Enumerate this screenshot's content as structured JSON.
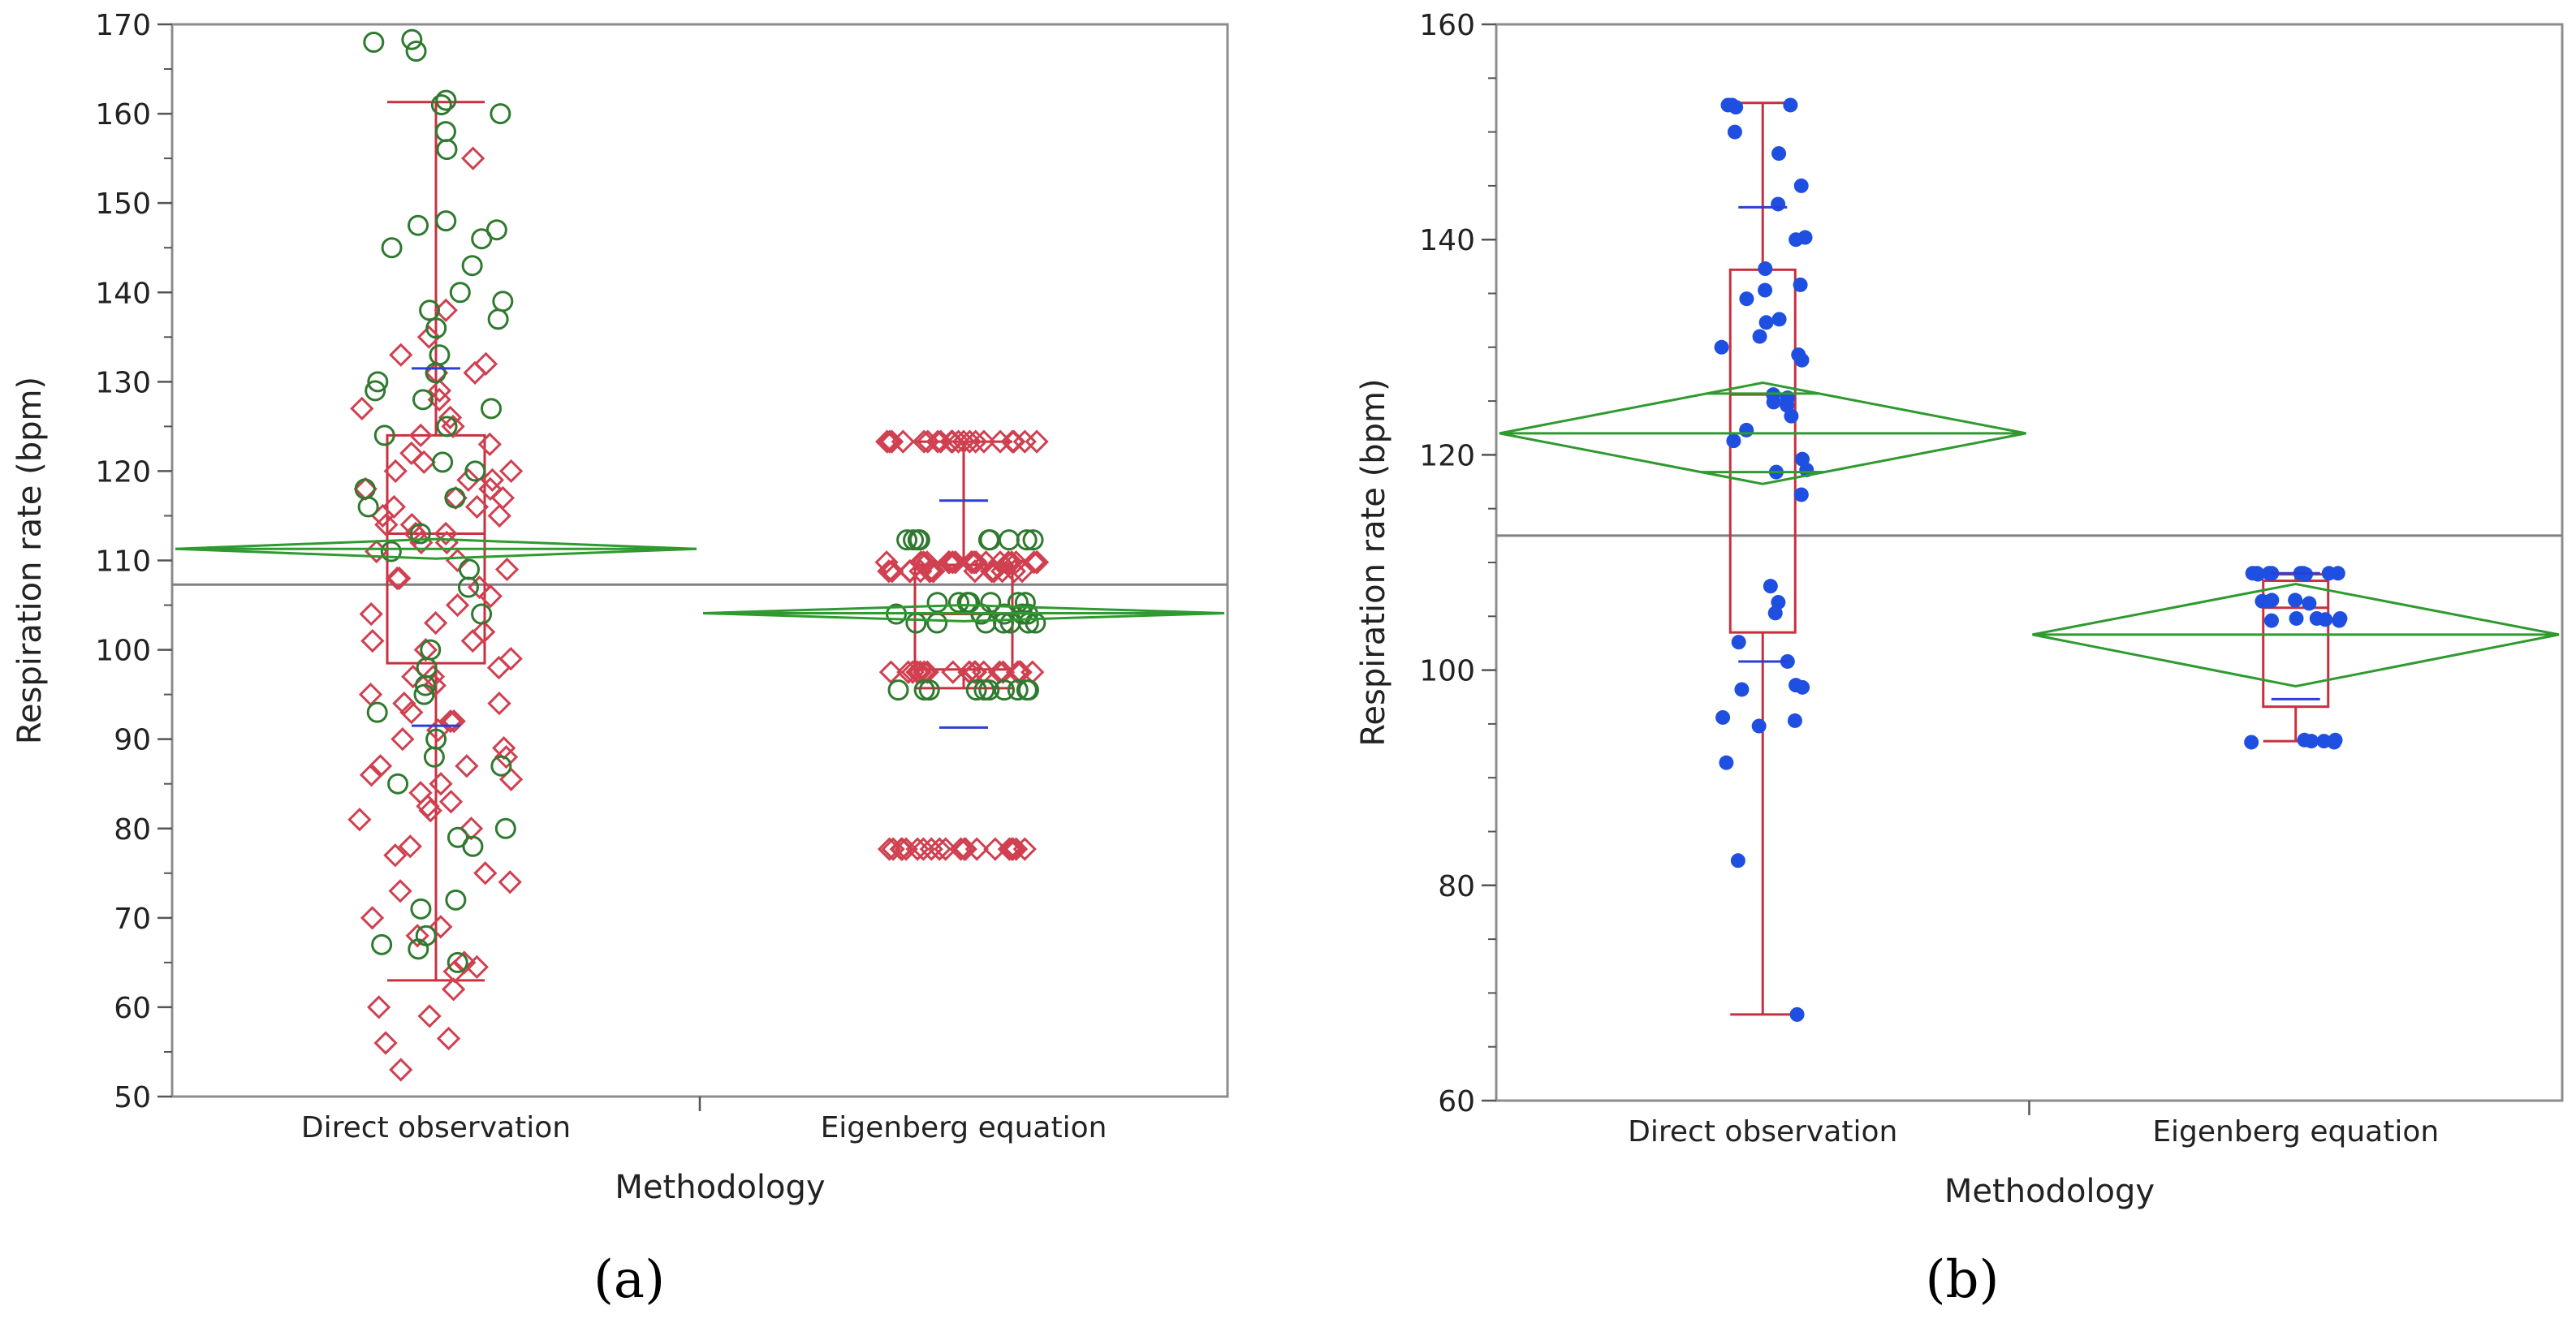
{
  "colors": {
    "box": "#c8303f",
    "diamond": "#2f9a2f",
    "grand_mean": "#808080",
    "ci_bar": "#2b3fd6",
    "points_blue": "#1f4fe0",
    "circle_green": "#2f7a2f",
    "diamond_red": "#d04050"
  },
  "chart_data": [
    {
      "panel_label": "(a)",
      "type": "box+scatter",
      "xlabel": "Methodology",
      "ylabel": "Respiration rate (bpm)",
      "ylim": [
        50,
        170
      ],
      "y_ticks": [
        50,
        60,
        70,
        80,
        90,
        100,
        110,
        120,
        130,
        140,
        150,
        160,
        170
      ],
      "categories": [
        "Direct observation",
        "Eigenberg equation"
      ],
      "grand_mean": 107.3,
      "groups": [
        {
          "name": "Direct observation",
          "box": {
            "min": 63,
            "q1": 98.5,
            "median": 113,
            "q3": 124,
            "max": 161.3
          },
          "mean_diamond": {
            "mean": 111.3,
            "lower": 110.2,
            "upper": 112.4
          },
          "ci_bars": [
            91.5,
            131.5
          ],
          "points_circle": [
            168,
            167,
            168.3,
            160,
            161,
            161.5,
            158,
            156,
            148,
            147.5,
            147,
            146,
            145,
            143,
            140,
            139,
            138,
            137,
            136,
            133,
            131,
            130,
            129,
            128,
            127,
            125,
            124,
            121,
            120,
            118,
            117,
            116,
            113,
            111,
            109,
            107,
            104,
            100,
            98,
            96,
            95,
            93,
            90,
            88,
            87,
            85,
            80,
            79,
            78,
            72,
            71,
            68,
            67,
            66.5,
            65
          ],
          "points_diamond": [
            155,
            138,
            135,
            133,
            132,
            131,
            131,
            129,
            128,
            127,
            126,
            125,
            124,
            123,
            122,
            121,
            120,
            120,
            119,
            119,
            118,
            118,
            117,
            117,
            116,
            116,
            115,
            115,
            114,
            114,
            113,
            113,
            112,
            112,
            111,
            110,
            109,
            108,
            108,
            107,
            106,
            105,
            104,
            103,
            102,
            101,
            101,
            100,
            99,
            98,
            97,
            97,
            96,
            95,
            94,
            94,
            93,
            92,
            92,
            91,
            90,
            89,
            88,
            87,
            87,
            86,
            85.5,
            85,
            84,
            83,
            82.5,
            82,
            81,
            80,
            78,
            77,
            75,
            74,
            73,
            70,
            69,
            68,
            65,
            64.5,
            64,
            62,
            60,
            59,
            56.5,
            56,
            53
          ]
        },
        {
          "name": "Eigenberg equation",
          "box": {
            "min": 95.7,
            "q1": 97.8,
            "median": 104,
            "q3": 109.5,
            "max": 123.3
          },
          "mean_diamond": {
            "mean": 104.1,
            "lower": 103.2,
            "upper": 105.0
          },
          "ci_bars": [
            91.3,
            116.7
          ],
          "points_circle": [
            112.3,
            112.3,
            112.3,
            112.3,
            112.3,
            112.3,
            112.3,
            112.3,
            112.3,
            105.3,
            105.3,
            105.3,
            105.3,
            105.3,
            105.3,
            105.3,
            105.3,
            104,
            104,
            104,
            104,
            104,
            104,
            103,
            103,
            103,
            103,
            103,
            103,
            103,
            95.5,
            95.5,
            95.5,
            95.5,
            95.5,
            95.5,
            95.5,
            95.5,
            95.5,
            95.5
          ],
          "points_diamond": [
            123.3,
            123.3,
            123.3,
            123.3,
            123.3,
            123.3,
            123.3,
            123.3,
            123.3,
            123.3,
            123.3,
            123.3,
            123.3,
            123.3,
            123.3,
            123.3,
            123.3,
            123.3,
            123.3,
            123.3,
            109.8,
            109.8,
            109.8,
            109.8,
            109.8,
            109.8,
            109.8,
            109.8,
            109.8,
            109.8,
            109.8,
            109.8,
            109.8,
            109.8,
            109.8,
            109.8,
            109.8,
            109.8,
            109.8,
            109.8,
            109.8,
            109.8,
            108.8,
            108.8,
            108.8,
            108.8,
            108.8,
            108.8,
            108.8,
            108.8,
            108.8,
            108.8,
            108.8,
            108.8,
            108.8,
            108.8,
            108.8,
            108.8,
            97.5,
            97.5,
            97.5,
            97.5,
            97.5,
            97.5,
            97.5,
            97.5,
            97.5,
            97.5,
            97.5,
            97.5,
            97.5,
            97.5,
            97.5,
            97.5,
            97.5,
            97.5,
            97.5,
            97.5,
            97.5,
            97.5,
            77.7,
            77.7,
            77.7,
            77.7,
            77.7,
            77.7,
            77.7,
            77.7,
            77.7,
            77.7,
            77.7,
            77.7,
            77.7,
            77.7,
            77.7,
            77.7,
            77.7,
            77.7,
            77.7,
            77.7
          ]
        }
      ]
    },
    {
      "panel_label": "(b)",
      "type": "box+scatter",
      "xlabel": "Methodology",
      "ylabel": "Respiration rate (bpm)",
      "ylim": [
        60,
        160
      ],
      "y_ticks": [
        60,
        80,
        100,
        120,
        140,
        160
      ],
      "minor_ticks": true,
      "categories": [
        "Direct observation",
        "Eigenberg equation"
      ],
      "grand_mean": 112.5,
      "groups": [
        {
          "name": "Direct observation",
          "box": {
            "min": 68,
            "q1": 103.5,
            "median": 125.6,
            "q3": 137.2,
            "max": 152.7
          },
          "mean_diamond": {
            "mean": 122,
            "lower": 117.3,
            "upper": 126.7
          },
          "inner_lines": [
            118.4,
            125.7
          ],
          "ci_bars": [
            100.8,
            143
          ],
          "points": [
            152.5,
            152.5,
            152.5,
            152.3,
            150.0,
            148.0,
            145.0,
            143.3,
            140.2,
            140.0,
            137.3,
            135.8,
            135.3,
            134.5,
            132.6,
            132.3,
            131.0,
            130.0,
            129.3,
            128.8,
            125.6,
            125.3,
            124.9,
            124.6,
            123.6,
            122.3,
            121.3,
            119.6,
            118.6,
            118.4,
            116.3,
            107.8,
            106.3,
            105.3,
            102.6,
            100.8,
            98.6,
            98.4,
            98.2,
            95.6,
            95.3,
            94.8,
            91.4,
            82.3,
            68.0
          ]
        },
        {
          "name": "Eigenberg equation",
          "box": {
            "min": 93.4,
            "q1": 96.6,
            "median": 105.8,
            "q3": 108.3,
            "max": 108.9
          },
          "mean_diamond": {
            "mean": 103.3,
            "lower": 98.5,
            "upper": 108.0
          },
          "ci_bars": [
            97.3,
            109
          ],
          "points": [
            109.0,
            109.0,
            109.0,
            109.0,
            109.0,
            109.0,
            109.0,
            109.0,
            108.9,
            108.9,
            106.5,
            106.5,
            106.4,
            106.4,
            106.2,
            104.8,
            104.8,
            104.8,
            104.7,
            104.6,
            104.6,
            93.5,
            93.5,
            93.4,
            93.4,
            93.3,
            93.3
          ]
        }
      ]
    }
  ]
}
